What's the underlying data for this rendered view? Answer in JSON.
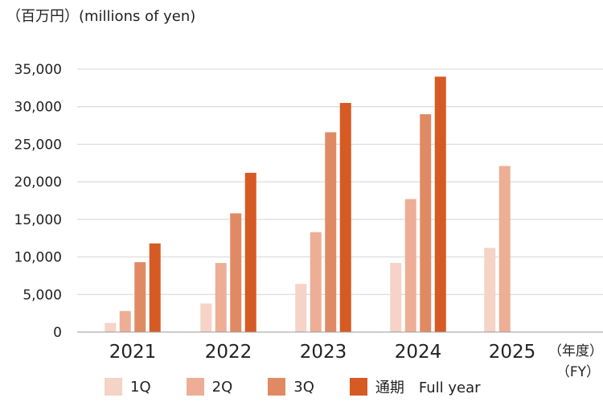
{
  "unit_label": "（百万円）(millions of yen)",
  "fy_label_line1": "（年度）",
  "fy_label_line2": "（FY）",
  "chart_data": {
    "type": "bar",
    "title": "",
    "xlabel": "",
    "ylabel": "",
    "categories": [
      "2021",
      "2022",
      "2023",
      "2024",
      "2025"
    ],
    "ylim": [
      0,
      35000
    ],
    "yticks": [
      0,
      5000,
      10000,
      15000,
      20000,
      25000,
      30000,
      35000
    ],
    "ytick_labels": [
      "0",
      "5,000",
      "10,000",
      "15,000",
      "20,000",
      "25,000",
      "30,000",
      "35,000"
    ],
    "grid": true,
    "legend_position": "bottom",
    "series": [
      {
        "name": "1Q",
        "color": "#f5d3c6",
        "values": [
          1200,
          3800,
          6400,
          9200,
          11200
        ]
      },
      {
        "name": "2Q",
        "color": "#edae95",
        "values": [
          2800,
          9200,
          13300,
          17700,
          22100
        ]
      },
      {
        "name": "3Q",
        "color": "#e08a64",
        "values": [
          9300,
          15800,
          26600,
          29000,
          null
        ]
      },
      {
        "name": "通期　Full year",
        "color": "#d65a24",
        "values": [
          11800,
          21200,
          30500,
          34000,
          null
        ]
      }
    ]
  }
}
